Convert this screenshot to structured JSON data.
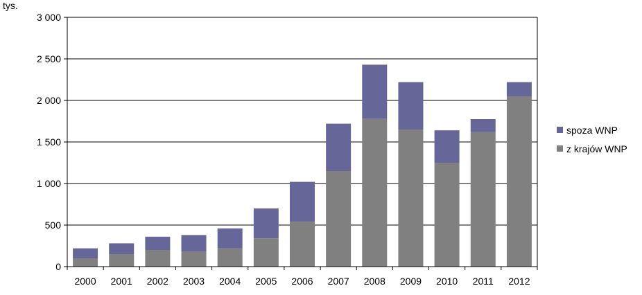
{
  "chart_data": {
    "type": "bar",
    "stacked": true,
    "unit_label": "tys.",
    "categories": [
      "2000",
      "2001",
      "2002",
      "2003",
      "2004",
      "2005",
      "2006",
      "2007",
      "2008",
      "2009",
      "2010",
      "2011",
      "2012"
    ],
    "series": [
      {
        "name": "z krajów WNP",
        "color": "#808080",
        "values": [
          100,
          150,
          200,
          180,
          220,
          340,
          540,
          1150,
          1780,
          1650,
          1250,
          1620,
          2050
        ]
      },
      {
        "name": "spoza WNP",
        "color": "#666699",
        "values": [
          120,
          130,
          160,
          200,
          240,
          360,
          480,
          570,
          650,
          570,
          390,
          155,
          170
        ]
      }
    ],
    "legend_order": [
      "spoza WNP",
      "z krajów WNP"
    ],
    "ylim": [
      0,
      3000
    ],
    "yticks": [
      0,
      500,
      1000,
      1500,
      2000,
      2500,
      3000
    ],
    "ytick_labels": [
      "0",
      "500",
      "1 000",
      "1 500",
      "2 000",
      "2 500",
      "3 000"
    ],
    "grid": true,
    "legend_position": "right"
  }
}
